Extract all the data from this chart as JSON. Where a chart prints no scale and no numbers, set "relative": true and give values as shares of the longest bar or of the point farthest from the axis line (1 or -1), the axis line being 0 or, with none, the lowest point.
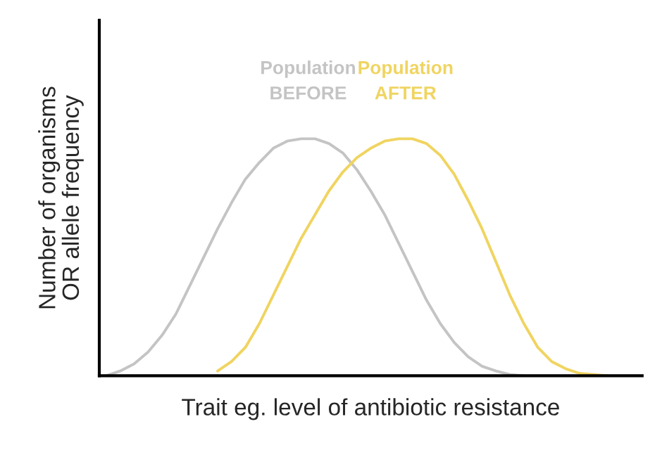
{
  "chart_data": {
    "type": "line",
    "relative": true,
    "xlabel": "Trait eg. level of antibiotic resistance",
    "ylabel": "Number of organisms\nOR allele frequency",
    "categories": [
      null,
      null,
      null,
      null,
      null,
      null,
      null,
      null,
      null,
      null,
      null,
      null,
      null,
      null,
      null,
      null,
      null,
      null,
      null,
      null,
      null,
      null,
      null,
      null,
      null,
      null,
      null,
      null,
      null,
      null,
      null,
      null,
      null,
      null,
      null,
      null,
      null
    ],
    "series": [
      {
        "name": "Population BEFORE",
        "color": "#c4c4c4",
        "values": [
          0,
          0.02,
          0.05,
          0.1,
          0.17,
          0.26,
          0.38,
          0.5,
          0.62,
          0.73,
          0.83,
          0.9,
          0.96,
          0.99,
          1.0,
          1.0,
          0.98,
          0.94,
          0.87,
          0.78,
          0.68,
          0.56,
          0.44,
          0.32,
          0.22,
          0.14,
          0.08,
          0.04,
          0.02,
          0.005,
          0,
          null,
          null,
          null,
          null,
          null,
          null
        ]
      },
      {
        "name": "Population AFTER",
        "color": "#f0d460",
        "values": [
          null,
          null,
          null,
          null,
          null,
          null,
          null,
          null,
          0.02,
          0.06,
          0.12,
          0.22,
          0.34,
          0.46,
          0.58,
          0.68,
          0.78,
          0.86,
          0.92,
          0.96,
          0.99,
          1.0,
          1.0,
          0.98,
          0.93,
          0.85,
          0.74,
          0.62,
          0.48,
          0.34,
          0.22,
          0.12,
          0.06,
          0.03,
          0.01,
          0.005,
          0
        ]
      }
    ],
    "grid": false,
    "legend": false,
    "marker": "none",
    "line_style": "solid"
  }
}
